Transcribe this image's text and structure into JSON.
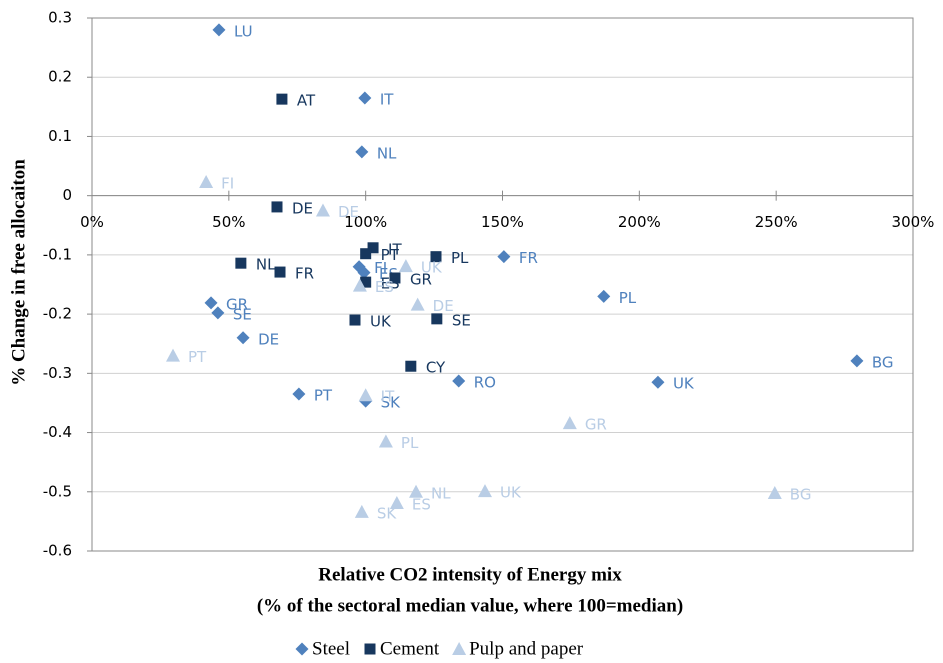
{
  "chart_data": {
    "type": "scatter",
    "xlabel": [
      "Relative CO2 intensity of Energy mix",
      "(% of the sectoral median value, where 100=median)"
    ],
    "ylabel": "% Change in free allocaiton",
    "xlim": [
      0,
      300
    ],
    "ylim": [
      -0.6,
      0.3
    ],
    "xticks": [
      {
        "value": 0,
        "label": "0%"
      },
      {
        "value": 50,
        "label": "50%"
      },
      {
        "value": 100,
        "label": "100%"
      },
      {
        "value": 150,
        "label": "150%"
      },
      {
        "value": 200,
        "label": "200%"
      },
      {
        "value": 250,
        "label": "250%"
      },
      {
        "value": 300,
        "label": "300%"
      }
    ],
    "yticks": [
      0.3,
      0.2,
      0.1,
      0,
      -0.1,
      -0.2,
      -0.3,
      -0.4,
      -0.5,
      -0.6
    ],
    "grid": true,
    "legend": "bottom",
    "series": [
      {
        "name": "Steel",
        "color": "#4f81bd",
        "marker": "diamond",
        "labels": [
          "LU",
          "IT",
          "NL",
          "FR",
          "PL",
          "BG",
          "UK",
          "RO",
          "SK",
          "PT",
          "DE",
          "GR",
          "SE",
          "FI",
          "ES"
        ],
        "x": [
          46.4,
          99.7,
          98.6,
          150.5,
          187,
          279.5,
          206.8,
          134,
          100,
          75.6,
          55.2,
          43.5,
          46,
          97.6,
          99.4
        ],
        "values": [
          0.28,
          0.165,
          0.074,
          -0.103,
          -0.17,
          -0.279,
          -0.315,
          -0.313,
          -0.347,
          -0.335,
          -0.24,
          -0.181,
          -0.198,
          -0.12,
          -0.13
        ]
      },
      {
        "name": "Cement",
        "color": "#17375e",
        "marker": "square",
        "labels": [
          "AT",
          "DE",
          "IT",
          "PT",
          "PL",
          "NL",
          "FR",
          "GR",
          "ES",
          "SE",
          "UK",
          "CY"
        ],
        "x": [
          69.4,
          67.6,
          102.7,
          100,
          125.7,
          54.4,
          68.7,
          110.7,
          100,
          126,
          96.1,
          116.5
        ],
        "values": [
          0.163,
          -0.019,
          -0.088,
          -0.098,
          -0.103,
          -0.114,
          -0.129,
          -0.139,
          -0.146,
          -0.208,
          -0.21,
          -0.288
        ]
      },
      {
        "name": "Pulp and paper",
        "color": "#b9cde5",
        "marker": "triangle",
        "labels": [
          "FI",
          "DE",
          "UK",
          "PT",
          "ES",
          "DE",
          "IT",
          "PL",
          "GR",
          "NL",
          "UK",
          "ES",
          "SK",
          "BG"
        ],
        "x": [
          41.7,
          84.4,
          114.7,
          29.6,
          97.9,
          119,
          100,
          107.4,
          174.6,
          118.4,
          143.6,
          111.4,
          98.6,
          249.5
        ],
        "values": [
          0.023,
          -0.025,
          -0.119,
          -0.27,
          -0.152,
          -0.184,
          -0.337,
          -0.415,
          -0.384,
          -0.5,
          -0.499,
          -0.519,
          -0.534,
          -0.502
        ]
      }
    ]
  }
}
